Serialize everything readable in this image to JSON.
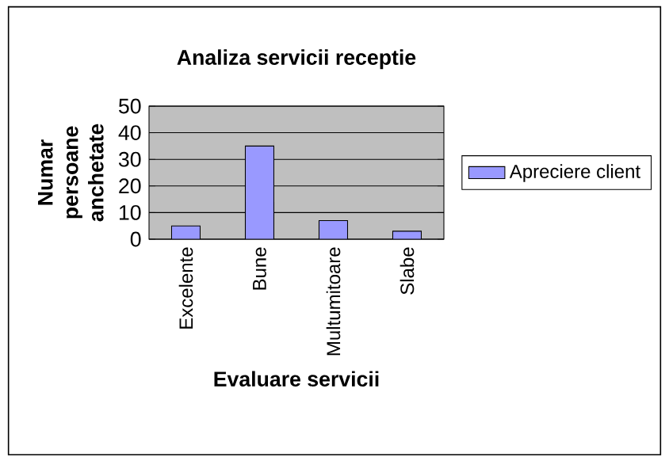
{
  "chart_data": {
    "type": "bar",
    "title": "Analiza servicii receptie",
    "xlabel": "Evaluare servicii",
    "ylabel": "Numar persoane anchetate",
    "categories": [
      "Excelente",
      "Bune",
      "Multumitoare",
      "Slabe"
    ],
    "series": [
      {
        "name": "Apreciere client",
        "color": "#9999ff",
        "values": [
          5,
          35,
          7,
          3
        ]
      }
    ],
    "ylim": [
      0,
      50
    ],
    "yticks": [
      0,
      10,
      20,
      30,
      40,
      50
    ],
    "grid": "y",
    "legend": "right"
  }
}
